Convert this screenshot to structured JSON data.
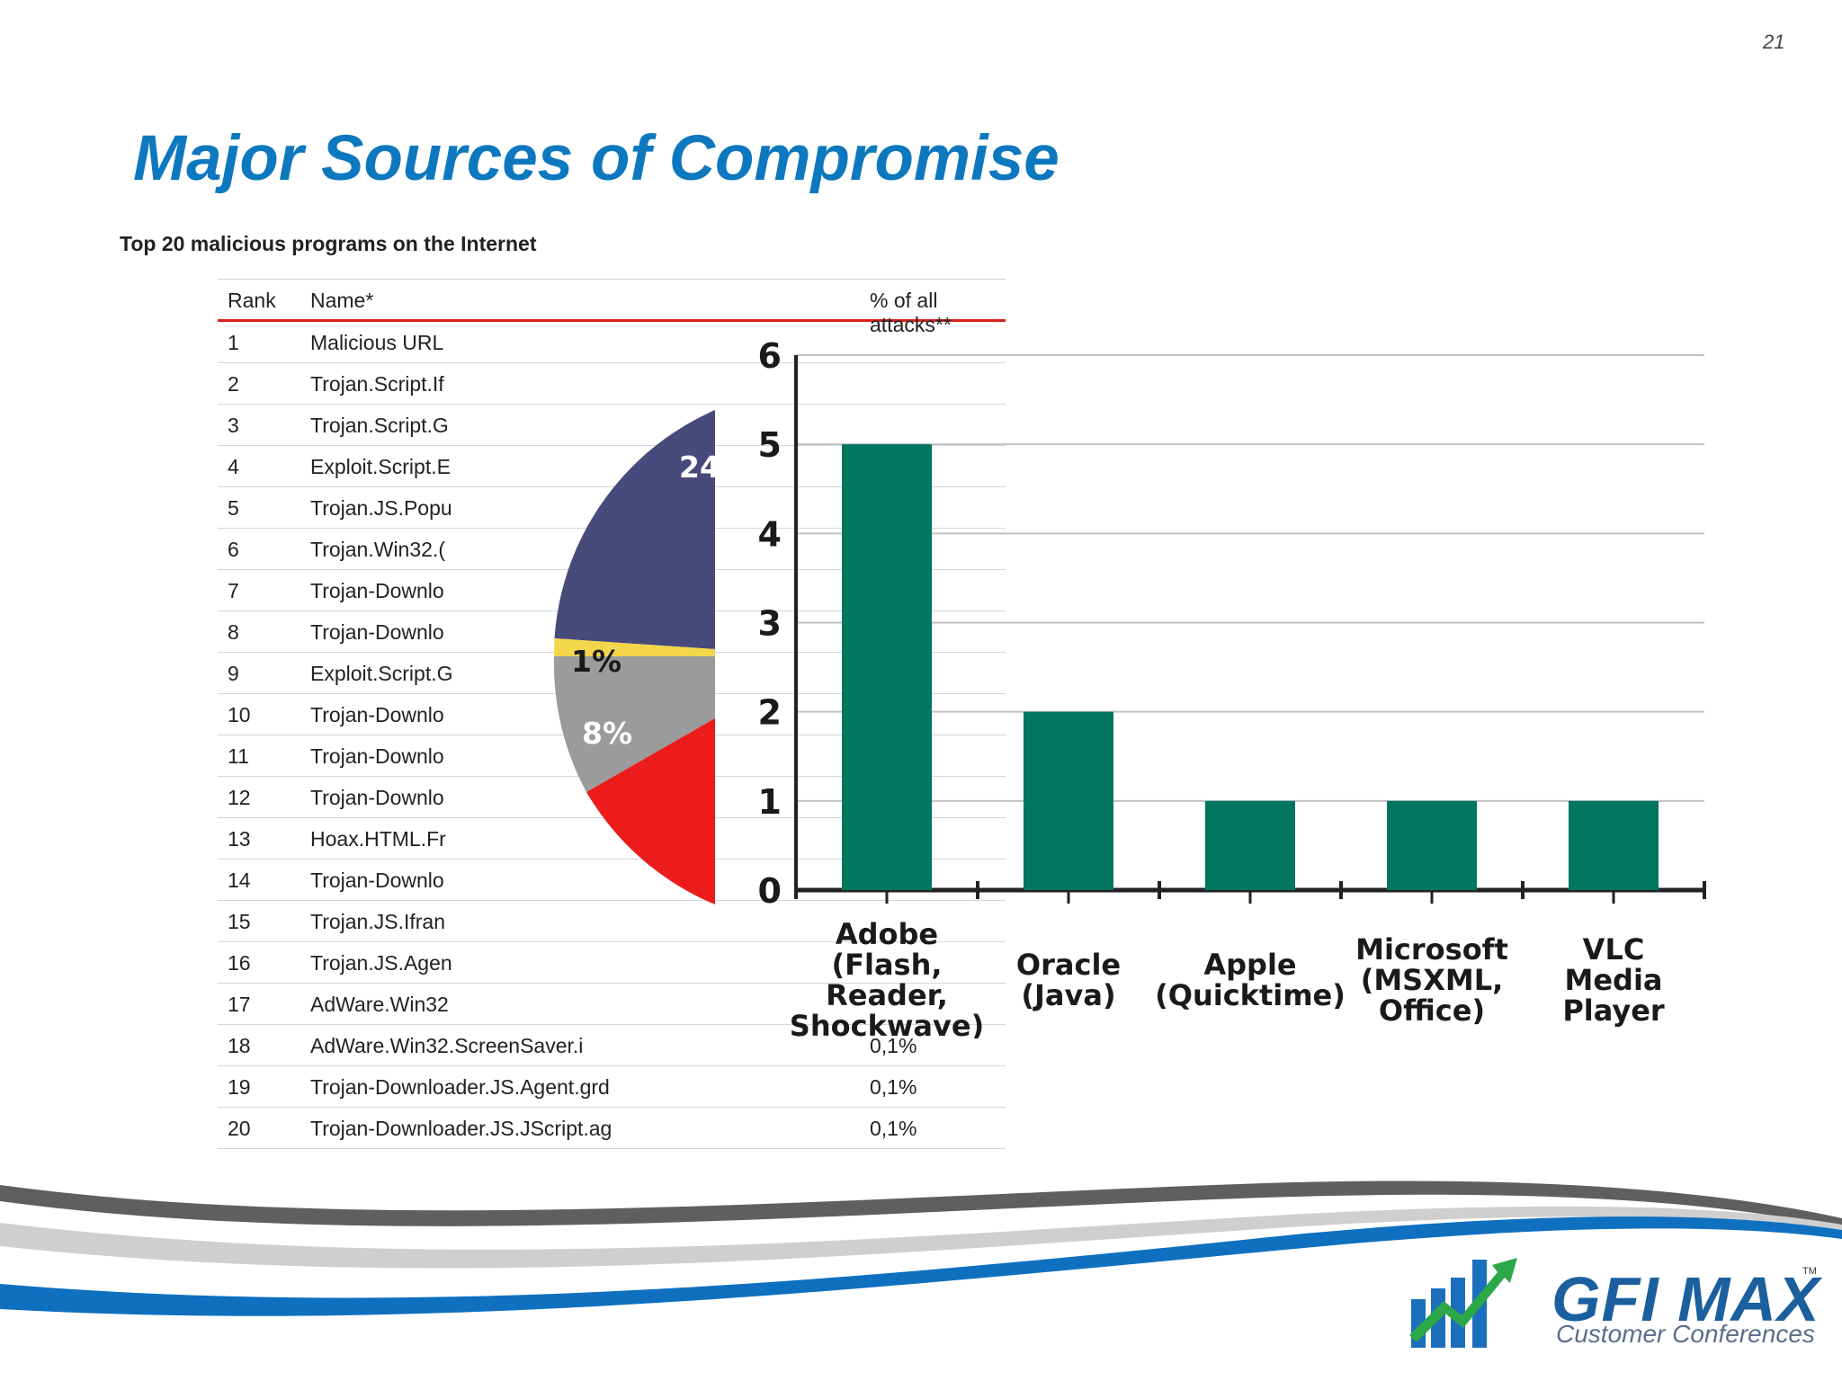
{
  "page_number": "21",
  "title": "Major Sources of Compromise",
  "table": {
    "caption": "Top 20 malicious programs on the Internet",
    "headers": {
      "rank": "Rank",
      "name": "Name*",
      "pct": "% of all attacks**"
    },
    "rows": [
      {
        "rank": "1",
        "name": "Malicious URL",
        "pct": ""
      },
      {
        "rank": "2",
        "name": "Trojan.Script.If",
        "pct": ""
      },
      {
        "rank": "3",
        "name": "Trojan.Script.G",
        "pct": ""
      },
      {
        "rank": "4",
        "name": "Exploit.Script.E",
        "pct": ""
      },
      {
        "rank": "5",
        "name": "Trojan.JS.Popu",
        "pct": ""
      },
      {
        "rank": "6",
        "name": "Trojan.Win32.(",
        "pct": ""
      },
      {
        "rank": "7",
        "name": "Trojan-Downlo",
        "pct": ""
      },
      {
        "rank": "8",
        "name": "Trojan-Downlo",
        "pct": ""
      },
      {
        "rank": "9",
        "name": "Exploit.Script.G",
        "pct": ""
      },
      {
        "rank": "10",
        "name": "Trojan-Downlo",
        "pct": ""
      },
      {
        "rank": "11",
        "name": "Trojan-Downlo",
        "pct": ""
      },
      {
        "rank": "12",
        "name": "Trojan-Downlo",
        "pct": ""
      },
      {
        "rank": "13",
        "name": "Hoax.HTML.Fr",
        "pct": ""
      },
      {
        "rank": "14",
        "name": "Trojan-Downlo",
        "pct": ""
      },
      {
        "rank": "15",
        "name": "Trojan.JS.Ifran",
        "pct": ""
      },
      {
        "rank": "16",
        "name": "Trojan.JS.Agen",
        "pct": ""
      },
      {
        "rank": "17",
        "name": "AdWare.Win32",
        "pct": ""
      },
      {
        "rank": "18",
        "name": "AdWare.Win32.ScreenSaver.i",
        "pct": "0,1%"
      },
      {
        "rank": "19",
        "name": "Trojan-Downloader.JS.Agent.grd",
        "pct": "0,1%"
      },
      {
        "rank": "20",
        "name": "Trojan-Downloader.JS.JScript.ag",
        "pct": "0,1%"
      }
    ]
  },
  "pie_labels": {
    "dark": "24",
    "yellow": "1%",
    "gray": "8%"
  },
  "colors": {
    "title": "#0e78bf",
    "bar": "#007560",
    "pie_dark": "#474a7a",
    "pie_yellow": "#f3d64b",
    "pie_gray": "#9b9b9b",
    "pie_red": "#ed1c1c",
    "header_rule": "#d62020"
  },
  "chart_data": {
    "type": "bar",
    "categories": [
      "Adobe\n(Flash,\nReader,\nShockwave)",
      "Oracle\n(Java)",
      "Apple\n(Quicktime)",
      "Microsoft\n(MSXML,\nOffice)",
      "VLC\nMedia\nPlayer"
    ],
    "values": [
      5,
      2,
      1,
      1,
      1
    ],
    "ylim": [
      0,
      6
    ],
    "yticks": [
      "0",
      "1",
      "2",
      "3",
      "4",
      "5",
      "6"
    ],
    "grid": true
  },
  "logo": {
    "brand": "GFI MAX",
    "tagline": "Customer Conferences",
    "tm": "TM"
  }
}
